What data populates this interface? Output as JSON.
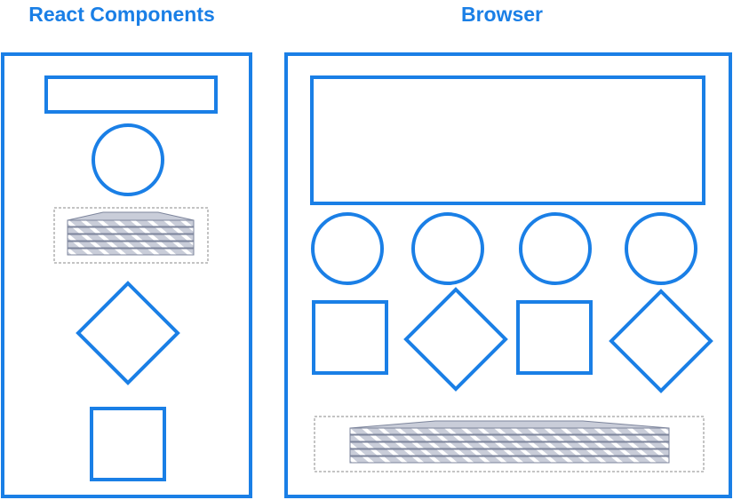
{
  "colors": {
    "accent": "#1a7fe6",
    "stack_fill": "#c9cdd9",
    "stack_stroke": "#7d859c",
    "dashed_border": "#8a8a8a",
    "background": "#ffffff"
  },
  "panels": {
    "react": {
      "title": "React Components",
      "items": [
        "rectangle",
        "circle",
        "layer-stack",
        "diamond",
        "square"
      ]
    },
    "browser": {
      "title": "Browser",
      "items": [
        "rectangle",
        "circle",
        "circle",
        "circle",
        "circle",
        "square",
        "diamond",
        "square",
        "diamond",
        "layer-stack"
      ]
    }
  }
}
